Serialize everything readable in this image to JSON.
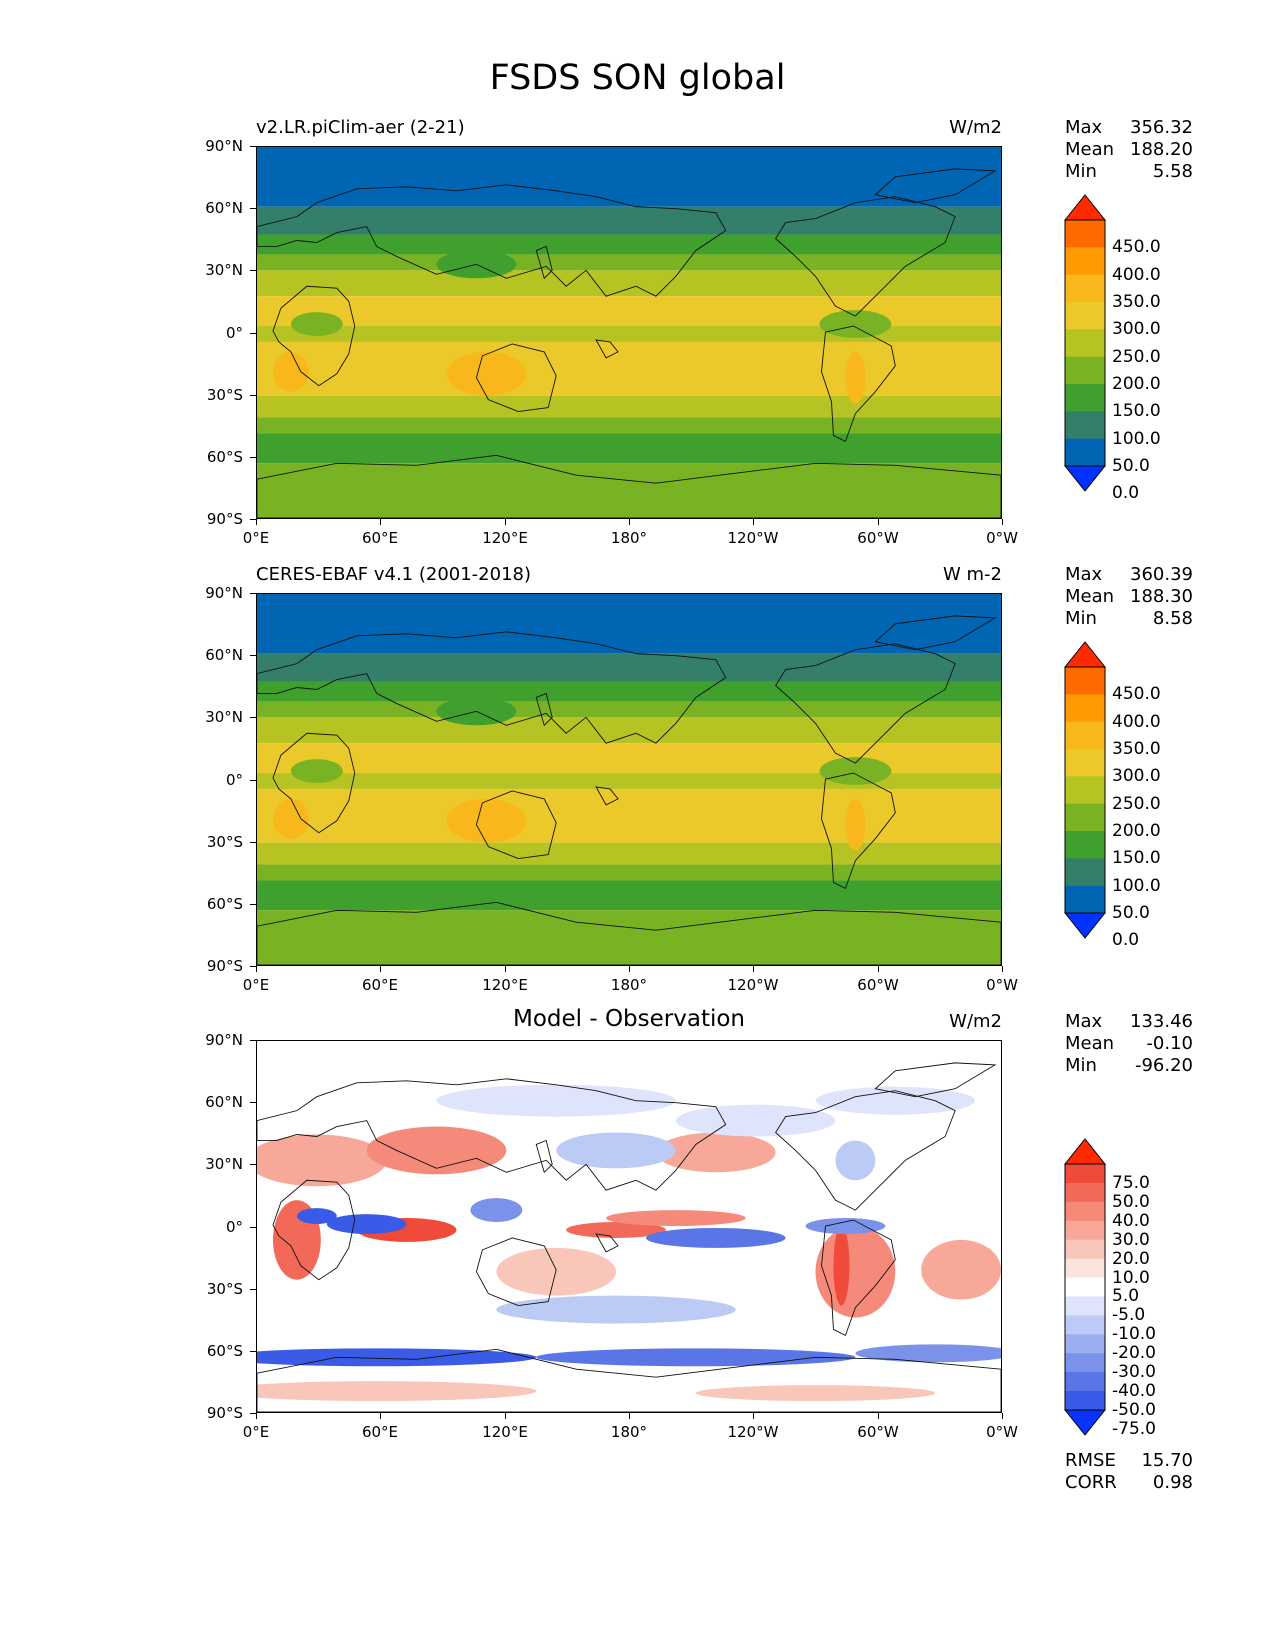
{
  "title": "FSDS SON global",
  "axes": {
    "lat_labels": [
      "90°N",
      "60°N",
      "30°N",
      "0°",
      "30°S",
      "60°S",
      "90°S"
    ],
    "lon_labels": [
      "0°E",
      "60°E",
      "120°E",
      "180°",
      "120°W",
      "60°W",
      "0°W"
    ]
  },
  "panels": [
    {
      "title": "v2.LR.piClim-aer (2-21)",
      "units": "W/m2",
      "stats": {
        "max_label": "Max",
        "max": "356.32",
        "mean_label": "Mean",
        "mean": "188.20",
        "min_label": "Min",
        "min": "5.58"
      }
    },
    {
      "title": "CERES-EBAF v4.1 (2001-2018)",
      "units": "W m-2",
      "stats": {
        "max_label": "Max",
        "max": "360.39",
        "mean_label": "Mean",
        "mean": "188.30",
        "min_label": "Min",
        "min": "8.58"
      }
    },
    {
      "title": "Model - Observation",
      "units": "W/m2",
      "stats": {
        "max_label": "Max",
        "max": "133.46",
        "mean_label": "Mean",
        "mean": "-0.10",
        "min_label": "Min",
        "min": "-96.20"
      },
      "footer": {
        "rmse_label": "RMSE",
        "rmse": "15.70",
        "corr_label": "CORR",
        "corr": "0.98"
      }
    }
  ],
  "colorbars": {
    "field": {
      "labels": [
        "450.0",
        "400.0",
        "350.0",
        "300.0",
        "250.0",
        "200.0",
        "150.0",
        "100.0",
        "50.0",
        "0.0"
      ],
      "colors": [
        "#ff2a00",
        "#ff6a00",
        "#ff9a00",
        "#f8b81c",
        "#ecc92a",
        "#b7c322",
        "#79b323",
        "#3fa02d",
        "#347f6a",
        "#0066b3",
        "#0033ff"
      ]
    },
    "diff": {
      "labels": [
        "75.0",
        "50.0",
        "40.0",
        "30.0",
        "20.0",
        "10.0",
        "5.0",
        "-5.0",
        "-10.0",
        "-20.0",
        "-30.0",
        "-40.0",
        "-50.0",
        "-75.0"
      ],
      "colors": [
        "#ff2a00",
        "#f04a3a",
        "#f2695a",
        "#f58a7a",
        "#f7a898",
        "#f9c6ba",
        "#fce4de",
        "#ffffff",
        "#dde4fb",
        "#bccaf6",
        "#9aaef0",
        "#7a92ea",
        "#5a76e6",
        "#3a5be8",
        "#0a33ff"
      ]
    }
  }
}
